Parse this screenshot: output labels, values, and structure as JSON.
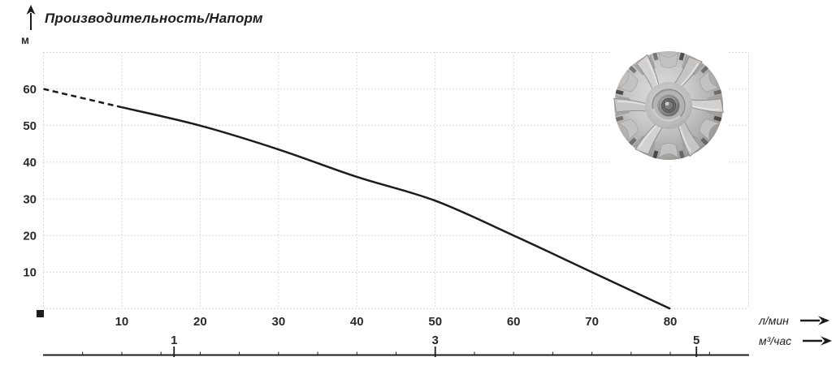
{
  "chart_data": {
    "type": "line",
    "title": "Производительность/Напорм",
    "ylabel": "м",
    "xlabel_primary": "л/мин",
    "xlabel_secondary": "м³/час",
    "xlim": [
      0,
      90
    ],
    "ylim": [
      0,
      70
    ],
    "grid": true,
    "x_ticks_lmin": [
      10,
      20,
      30,
      40,
      50,
      60,
      70,
      80
    ],
    "y_ticks": [
      10,
      20,
      30,
      40,
      50,
      60
    ],
    "x_ticks_m3h": [
      1,
      3,
      5
    ],
    "m3h_to_lmin": 16.6667,
    "series": [
      {
        "name": "head-curve-dashed",
        "style": "dashed",
        "points": [
          [
            0,
            60
          ],
          [
            10,
            55
          ]
        ]
      },
      {
        "name": "head-curve",
        "style": "solid",
        "points": [
          [
            10,
            55
          ],
          [
            20,
            50
          ],
          [
            30,
            43.5
          ],
          [
            40,
            36
          ],
          [
            50,
            29.5
          ],
          [
            60,
            20
          ],
          [
            70,
            10
          ],
          [
            80,
            0
          ]
        ]
      }
    ],
    "origin_marker": "black-square",
    "colors": {
      "curve": "#1c1c1c",
      "grid": "#c9c9c9",
      "text": "#2a2a2a",
      "axis": "#1c1c1c",
      "background": "#ffffff"
    }
  },
  "icons": {
    "up_arrow": "y-axis-direction-arrow",
    "right_arrow_lmin": "x-axis-direction-arrow",
    "right_arrow_m3h": "x-axis-direction-arrow",
    "impeller": "pump-impeller-photo"
  }
}
